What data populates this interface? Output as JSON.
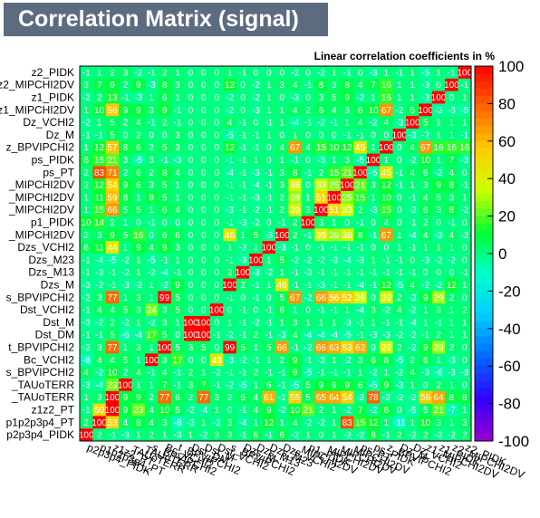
{
  "chart_data": {
    "type": "heatmap",
    "title": "Correlation Matrix (signal)",
    "subtitle": "Linear correlation coefficients in %",
    "zlim": [
      -100,
      100
    ],
    "colorbar_ticks": [
      100,
      80,
      60,
      40,
      20,
      0,
      -20,
      -40,
      -60,
      -80,
      -100
    ],
    "y_labels": [
      "z2_PIDK",
      "z2_MIPCHI2DV",
      "z1_PIDK",
      "z1_MIPCHI2DV",
      "Dz_VCHI2",
      "Dz_M",
      "z_BPVIPCHI2",
      "ps_PIDK",
      "ps_PT",
      "_MIPCHI2DV",
      "_MIPCHI2DV",
      "_MIPCHI2DV",
      "p1_PIDK",
      "_MIPCHI2DV",
      "Dzs_VCHI2",
      "Dzs_M23",
      "Dzs_M13",
      "Dzs_M",
      "s_BPVIPCHI2",
      "Dst_VCHI2",
      "Dst_M",
      "Dst_DM",
      "t_BPVIPCHI2",
      "Bc_VCHI2",
      "s_BPVIPCHI2",
      "_TAUoTERR",
      "_TAUoTERR",
      "z1z2_PT",
      "p1p2p3p4_PT",
      "p2p3p4_PIDK"
    ],
    "x_labels": [
      "p2p3p4_PIDK",
      "p1p2p3p4_PT",
      "z1z2_PT",
      "_TAUoTERR",
      "_TAUoTERR",
      "s_BPVIPCHI2",
      "Bc_VCHI2",
      "t_BPVIPCHI2",
      "Dst_DM",
      "Dst_M",
      "Dst_VCHI2",
      "s_BPVIPCHI2",
      "Dzs_M",
      "Dzs_M13",
      "Dzs_M23",
      "Dzs_VCHI2",
      "_MIPCHI2DV",
      "p1_PIDK",
      "_MIPCHI2DV",
      "_MIPCHI2DV",
      "_MIPCHI2DV",
      "ps_PT",
      "ps_PIDK",
      "z_BPVIPCHI2",
      "Dz_M",
      "Dz_VCHI2",
      "z1_MIPCHI2DV",
      "z1_PIDK",
      "z2_MIPCHI2DV",
      "z2_PIDK"
    ],
    "values": [
      [
        -1,
        1,
        2,
        3,
        -2,
        -1,
        2,
        1,
        0,
        0,
        0,
        1,
        -1,
        0,
        0,
        0,
        -2,
        0,
        -2,
        1,
        -1,
        0,
        -3,
        1,
        -1,
        1,
        -5,
        1,
        -1,
        100
      ],
      [
        3,
        7,
        9,
        2,
        9,
        -3,
        8,
        3,
        0,
        0,
        0,
        12,
        0,
        -2,
        1,
        3,
        4,
        -1,
        8,
        3,
        8,
        4,
        7,
        16,
        1,
        1,
        -3,
        0,
        100,
        -1
      ],
      [
        -2,
        2,
        13,
        -1,
        -3,
        1,
        6,
        1,
        0,
        0,
        0,
        -2,
        0,
        -2,
        1,
        0,
        -3,
        0,
        3,
        5,
        9,
        -2,
        1,
        16,
        1,
        1,
        -3,
        100,
        0,
        1
      ],
      [
        1,
        10,
        56,
        9,
        9,
        3,
        9,
        -1,
        0,
        0,
        0,
        -2,
        0,
        -3,
        1,
        1,
        4,
        2,
        6,
        4,
        3,
        6,
        10,
        67,
        -2,
        5,
        100,
        -3,
        -3,
        -5
      ],
      [
        -2,
        1,
        5,
        2,
        4,
        -1,
        2,
        -1,
        0,
        0,
        0,
        4,
        -1,
        0,
        -1,
        1,
        -4,
        -1,
        -2,
        -1,
        1,
        4,
        -2,
        4,
        -3,
        100,
        5,
        1,
        1,
        1
      ],
      [
        -1,
        -1,
        5,
        0,
        2,
        0,
        0,
        3,
        0,
        0,
        0,
        -5,
        -1,
        -1,
        1,
        0,
        1,
        0,
        0,
        0,
        -1,
        -1,
        0,
        0,
        100,
        -3,
        -2,
        1,
        1,
        -1
      ],
      [
        1,
        12,
        57,
        8,
        6,
        2,
        5,
        3,
        0,
        0,
        0,
        12,
        -1,
        -1,
        0,
        4,
        67,
        4,
        15,
        10,
        12,
        45,
        1,
        100,
        0,
        4,
        67,
        16,
        16,
        16
      ],
      [
        8,
        15,
        21,
        3,
        -5,
        3,
        -1,
        -3,
        0,
        0,
        0,
        -1,
        -1,
        1,
        0,
        1,
        -1,
        0,
        -3,
        1,
        3,
        -5,
        100,
        1,
        0,
        -2,
        10,
        1,
        7,
        -3
      ],
      [
        2,
        83,
        71,
        2,
        6,
        2,
        8,
        4,
        0,
        0,
        0,
        -4,
        -1,
        -3,
        -1,
        3,
        8,
        -1,
        2,
        15,
        21,
        100,
        -5,
        45,
        -1,
        4,
        6,
        -2,
        4,
        0
      ],
      [
        2,
        12,
        54,
        9,
        6,
        3,
        5,
        1,
        0,
        0,
        0,
        -1,
        -1,
        -4,
        -1,
        3,
        38,
        0,
        33,
        25,
        100,
        21,
        3,
        12,
        -1,
        1,
        3,
        9,
        8,
        -1
      ],
      [
        1,
        11,
        59,
        8,
        1,
        9,
        5,
        1,
        0,
        0,
        0,
        -1,
        -1,
        -3,
        -1,
        2,
        28,
        1,
        51,
        100,
        25,
        15,
        1,
        10,
        0,
        -1,
        4,
        5,
        3,
        1
      ],
      [
        1,
        15,
        66,
        5,
        5,
        1,
        6,
        4,
        0,
        0,
        0,
        -3,
        -1,
        -2,
        -1,
        2,
        39,
        3,
        100,
        51,
        33,
        2,
        -3,
        15,
        0,
        -2,
        6,
        3,
        8,
        -2
      ],
      [
        10,
        14,
        2,
        1,
        0,
        -1,
        0,
        0,
        0,
        0,
        0,
        -1,
        -3,
        -2,
        0,
        -1,
        2,
        100,
        3,
        1,
        0,
        -1,
        0,
        4,
        0,
        -1,
        2,
        0,
        -1,
        0
      ],
      [
        2,
        3,
        9,
        5,
        16,
        0,
        6,
        6,
        0,
        0,
        0,
        46,
        1,
        5,
        -3,
        100,
        2,
        -1,
        39,
        28,
        38,
        8,
        -1,
        67,
        1,
        -4,
        4,
        -3,
        4,
        -2
      ],
      [
        6,
        11,
        44,
        1,
        9,
        4,
        9,
        3,
        0,
        0,
        0,
        1,
        -2,
        1,
        100,
        -3,
        -1,
        0,
        -1,
        -1,
        -1,
        -1,
        0,
        0,
        1,
        -1,
        1,
        1,
        1,
        0
      ],
      [
        -1,
        -4,
        -5,
        -2,
        1,
        -5,
        -1,
        1,
        0,
        0,
        0,
        -1,
        -3,
        100,
        1,
        5,
        -2,
        -2,
        -2,
        -3,
        -4,
        -3,
        1,
        -1,
        -1,
        0,
        -3,
        -2,
        -2,
        0
      ],
      [
        -1,
        -3,
        -1,
        -2,
        1,
        -2,
        -4,
        -1,
        0,
        0,
        0,
        2,
        100,
        -3,
        -2,
        1,
        -1,
        -3,
        -1,
        -1,
        -1,
        -1,
        -1,
        -1,
        -1,
        -1,
        0,
        0,
        0,
        -1
      ],
      [
        -3,
        -2,
        -1,
        -3,
        -2,
        1,
        -2,
        9,
        0,
        0,
        0,
        100,
        2,
        -1,
        1,
        46,
        -1,
        -1,
        -3,
        -1,
        -1,
        -4,
        -1,
        12,
        -5,
        4,
        -2,
        -2,
        12,
        1
      ],
      [
        -2,
        3,
        77,
        1,
        3,
        1,
        99,
        5,
        0,
        0,
        0,
        -1,
        0,
        -1,
        0,
        5,
        67,
        -2,
        66,
        56,
        52,
        36,
        0,
        39,
        2,
        -2,
        9,
        29,
        2,
        0
      ],
      [
        -1,
        4,
        4,
        5,
        3,
        24,
        3,
        5,
        0,
        0,
        100,
        0,
        -1,
        0,
        -1,
        6,
        1,
        0,
        -1,
        -1,
        1,
        -4,
        3,
        -2,
        4,
        -2,
        1,
        3,
        1,
        2
      ],
      [
        -3,
        -2,
        2,
        -2,
        1,
        -2,
        3,
        1,
        100,
        100,
        0,
        1,
        -1,
        -2,
        -1,
        1,
        3,
        1,
        1,
        1,
        -3,
        -1,
        1,
        -1,
        -1,
        -4,
        1,
        -1,
        1,
        1
      ],
      [
        -1,
        -1,
        5,
        -6,
        -4,
        17,
        5,
        0,
        100,
        100,
        -1,
        -2,
        -1,
        2,
        -1,
        -3,
        4,
        -4,
        -4,
        -4,
        -5,
        -1,
        -3,
        -3,
        -2,
        -2,
        -1,
        2,
        1,
        1
      ],
      [
        -2,
        3,
        77,
        1,
        3,
        1,
        100,
        5,
        3,
        5,
        0,
        99,
        5,
        1,
        5,
        66,
        -1,
        -2,
        66,
        63,
        53,
        62,
        0,
        39,
        2,
        -2,
        9,
        29,
        2,
        0
      ],
      [
        -8,
        4,
        4,
        5,
        1,
        100,
        3,
        17,
        0,
        0,
        43,
        -3,
        -2,
        -1,
        1,
        2,
        9,
        -1,
        -3,
        1,
        -2,
        3,
        6,
        8,
        -5,
        2,
        6,
        1,
        -3,
        0
      ],
      [
        4,
        -2,
        10,
        2,
        4,
        -1,
        4,
        -1,
        2,
        1,
        -2,
        -1,
        -1,
        2,
        -1,
        -1,
        9,
        -5,
        -1,
        -1,
        -1,
        1,
        -2,
        1,
        -2,
        4,
        -3,
        -6,
        -3,
        -3
      ],
      [
        -3,
        -4,
        23,
        100,
        1,
        1,
        7,
        -1,
        3,
        7,
        -1,
        -2,
        -5,
        1,
        6,
        -1,
        -5,
        5,
        9,
        9,
        9,
        6,
        -5,
        9,
        -3,
        1,
        0,
        2,
        1,
        0
      ],
      [
        1,
        3,
        100,
        9,
        9,
        2,
        77,
        6,
        2,
        77,
        3,
        2,
        5,
        4,
        61,
        -1,
        55,
        5,
        65,
        64,
        54,
        -2,
        78,
        -2,
        -2,
        -2,
        56,
        64,
        8,
        8
      ],
      [
        -1,
        50,
        100,
        9,
        23,
        4,
        10,
        5,
        -2,
        -4,
        1,
        0,
        -1,
        4,
        9,
        -2,
        10,
        21,
        2,
        1,
        -2,
        7,
        -2,
        8,
        0,
        -5,
        5,
        21,
        -7,
        1
      ],
      [
        2,
        100,
        53,
        4,
        8,
        4,
        3,
        -8,
        -3,
        1,
        -2,
        3,
        -4,
        1,
        12,
        1,
        4,
        -2,
        -2,
        1,
        83,
        15,
        12,
        1,
        -11,
        1,
        10,
        3,
        1,
        3
      ],
      [
        100,
        2,
        -1,
        -3,
        1,
        2,
        1,
        -3,
        1,
        -2,
        3,
        3,
        -1,
        6,
        -1,
        6,
        -2,
        1,
        0,
        1,
        -2,
        -2,
        8,
        -1,
        2,
        -2,
        2,
        -2,
        -2,
        2
      ]
    ]
  },
  "colors": {
    "title_bg": "#5d6b80",
    "title_text": "#ffffff",
    "cell_text": "#ffffff",
    "colorbar": [
      "#9900cc",
      "#3300ff",
      "#0066ff",
      "#00ccff",
      "#00ffcc",
      "#00ff33",
      "#ccff00",
      "#ffcc00",
      "#ff6600",
      "#ff0000"
    ]
  }
}
